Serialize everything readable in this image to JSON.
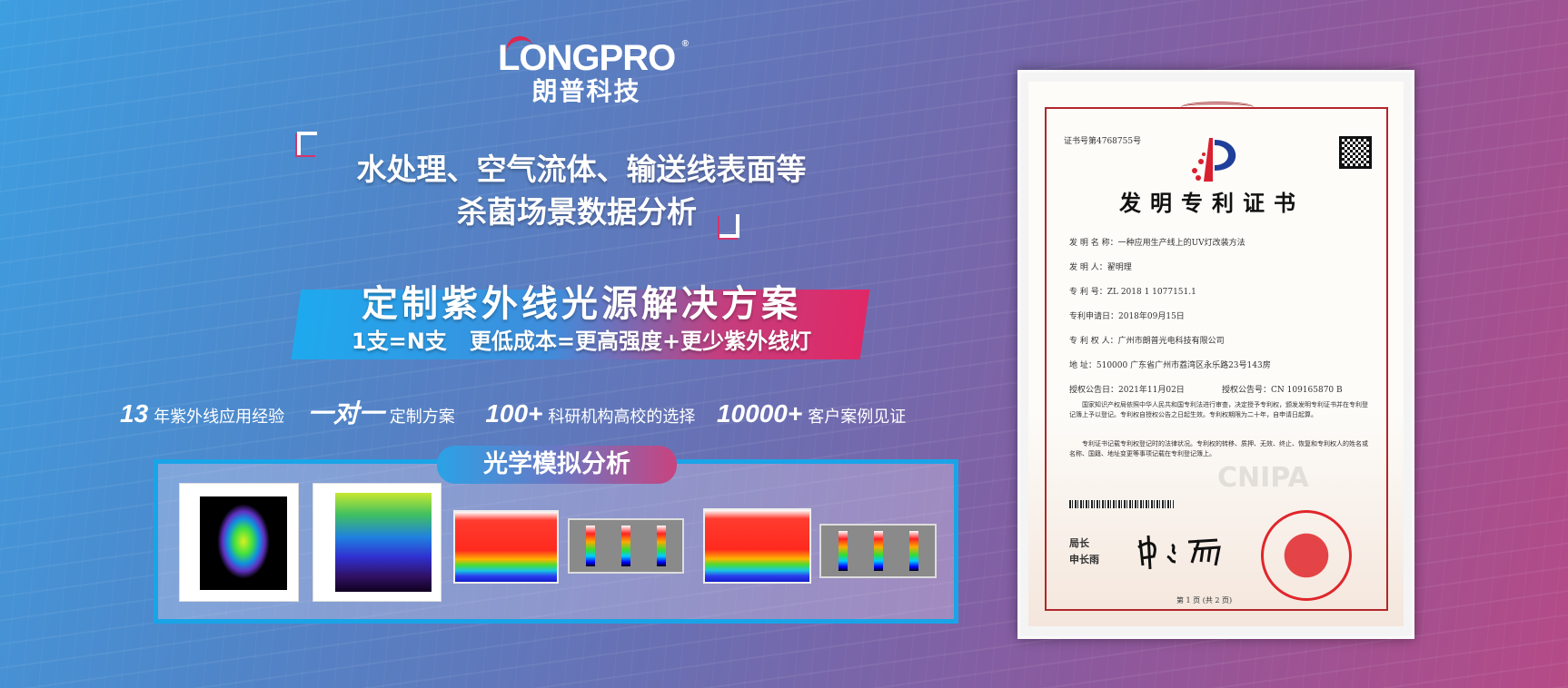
{
  "brand": {
    "name_en": "LONGPRO",
    "registered": "®",
    "name_cn": "朗普科技"
  },
  "headline": {
    "line1": "水处理、空气流体、输送线表面等",
    "line2": "杀菌场景数据分析"
  },
  "solution": {
    "title": "定制紫外线光源解决方案",
    "subtitle": "1支=N支   更低成本=更高强度+更少紫外线灯"
  },
  "stats": [
    {
      "value": "13",
      "label": "年紫外线应用经验"
    },
    {
      "value": "一对一",
      "label": "定制方案"
    },
    {
      "value": "100+",
      "label": "科研机构高校的选择"
    },
    {
      "value": "10000+",
      "label": "客户案例见证"
    }
  ],
  "optics": {
    "title": "光学模拟分析"
  },
  "certificate": {
    "number": "证书号第4768755号",
    "title": "发明专利证书",
    "fields": [
      "发 明 名 称：一种应用生产线上的UV灯改装方法",
      "发   明   人：翟明理",
      "专   利   号：ZL 2018 1 1077151.1",
      "专利申请日：2018年09月15日",
      "专 利 权 人：广州市朗普光电科技有限公司",
      "地         址：510000 广东省广州市荔湾区永乐路23号143房"
    ],
    "grant_date": "授权公告日：2021年11月02日",
    "grant_no": "授权公告号：CN 109165870 B",
    "para1": "国家知识产权局依照中华人民共和国专利法进行审查，决定授予专利权，颁发发明专利证书并在专利登记簿上予以登记。专利权自授权公告之日起生效。专利权期限为二十年，自申请日起算。",
    "para2": "专利证书记载专利权登记时的法律状况。专利权的转移、质押、无效、终止、恢复和专利权人的姓名或名称、国籍、地址变更等事项记载在专利登记簿上。",
    "director_title": "局长",
    "director_name": "申长雨",
    "page": "第 1 页 (共 2 页)",
    "watermark": "CNIPA"
  },
  "colors": {
    "accent_blue": "#1aa4e8",
    "accent_pink": "#e02866",
    "seal_red": "#e0262b"
  }
}
